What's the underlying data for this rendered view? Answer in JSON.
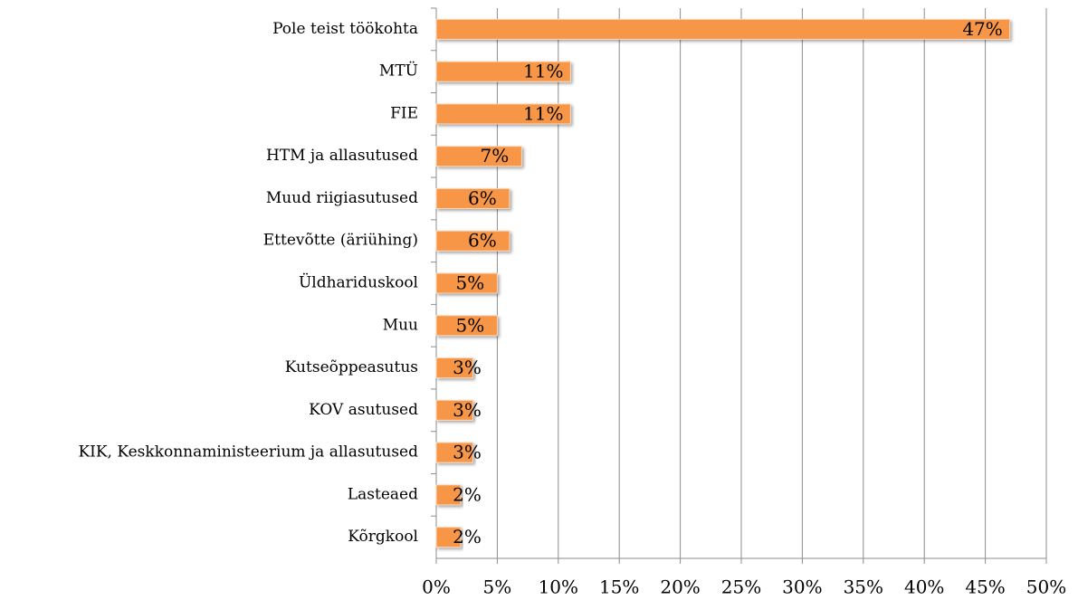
{
  "chart_data": {
    "type": "bar",
    "orientation": "horizontal",
    "categories": [
      "Pole teist töökohta",
      "MTÜ",
      "FIE",
      "HTM ja allasutused",
      "Muud riigiasutused",
      "Ettevõtte (äriühing)",
      "Üldhariduskool",
      "Muu",
      "Kutseõppeasutus",
      "KOV asutused",
      "KIK, Keskkonnaministeerium ja allasutused",
      "Lasteaed",
      "Kõrgkool"
    ],
    "values": [
      47,
      11,
      11,
      7,
      6,
      6,
      5,
      5,
      3,
      3,
      3,
      2,
      2
    ],
    "value_labels": [
      "47%",
      "11%",
      "11%",
      "7%",
      "6%",
      "6%",
      "5%",
      "5%",
      "3%",
      "3%",
      "3%",
      "2%",
      "2%"
    ],
    "color": "#f79646",
    "xlim": [
      0,
      50
    ],
    "xticks": [
      {
        "value": 0,
        "label": "0%"
      },
      {
        "value": 5,
        "label": "5%"
      },
      {
        "value": 10,
        "label": "10%"
      },
      {
        "value": 15,
        "label": "15%"
      },
      {
        "value": 20,
        "label": "20%"
      },
      {
        "value": 25,
        "label": "25%"
      },
      {
        "value": 30,
        "label": "30%"
      },
      {
        "value": 35,
        "label": "35%"
      },
      {
        "value": 40,
        "label": "40%"
      },
      {
        "value": 45,
        "label": "45%"
      },
      {
        "value": 50,
        "label": "50%"
      }
    ],
    "grid": true
  }
}
